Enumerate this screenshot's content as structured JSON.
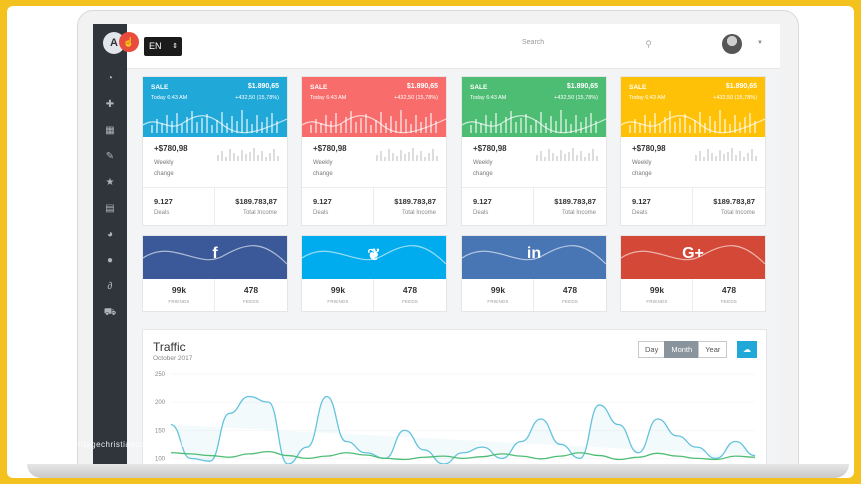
{
  "header": {
    "language": "EN",
    "search_placeholder": "Search"
  },
  "stat_cards": [
    {
      "title": "SALE",
      "amount": "$1.890,65",
      "time": "Today 6:43 AM",
      "delta": "+432,50 (15,78%)",
      "weekly_value": "+$780,98",
      "weekly_label": "Weekly change",
      "deals": "9.127",
      "deals_label": "Deals",
      "income": "$189.783,87",
      "income_label": "Total Income",
      "color": "#20a8d8"
    },
    {
      "title": "SALE",
      "amount": "$1.890,65",
      "time": "Today 6:43 AM",
      "delta": "+432,50 (15,78%)",
      "weekly_value": "+$780,98",
      "weekly_label": "Weekly change",
      "deals": "9.127",
      "deals_label": "Deals",
      "income": "$189.783,87",
      "income_label": "Total Income",
      "color": "#f86c6b"
    },
    {
      "title": "SALE",
      "amount": "$1.890,65",
      "time": "Today 6:43 AM",
      "delta": "+432,50 (15,78%)",
      "weekly_value": "+$780,98",
      "weekly_label": "Weekly change",
      "deals": "9.127",
      "deals_label": "Deals",
      "income": "$189.783,87",
      "income_label": "Total Income",
      "color": "#4dbd74"
    },
    {
      "title": "SALE",
      "amount": "$1.890,65",
      "time": "Today 6:43 AM",
      "delta": "+432,50 (15,78%)",
      "weekly_value": "+$780,98",
      "weekly_label": "Weekly change",
      "deals": "9.127",
      "deals_label": "Deals",
      "income": "$189.783,87",
      "income_label": "Total Income",
      "color": "#ffc107"
    }
  ],
  "social_cards": [
    {
      "icon": "f",
      "network": "facebook",
      "friends": "99k",
      "friends_label": "FRIENDS",
      "feeds": "478",
      "feeds_label": "FEEDS",
      "color": "#3b5998"
    },
    {
      "icon": "❦",
      "network": "twitter",
      "friends": "99k",
      "friends_label": "FRIENDS",
      "feeds": "478",
      "feeds_label": "FEEDS",
      "color": "#00aced"
    },
    {
      "icon": "in",
      "network": "linkedin",
      "friends": "99k",
      "friends_label": "FRIENDS",
      "feeds": "478",
      "feeds_label": "FEEDS",
      "color": "#4875b4"
    },
    {
      "icon": "G+",
      "network": "google-plus",
      "friends": "99k",
      "friends_label": "FRIENDS",
      "feeds": "478",
      "feeds_label": "FEEDS",
      "color": "#d34836"
    }
  ],
  "traffic": {
    "title": "Traffic",
    "subtitle": "October 2017",
    "buttons": [
      "Day",
      "Month",
      "Year"
    ],
    "active_button": "Month"
  },
  "chart_data": {
    "type": "line",
    "y_ticks": [
      "250",
      "200",
      "150",
      "100"
    ],
    "ylim": [
      90,
      250
    ],
    "series": [
      {
        "values": [
          160,
          100,
          95,
          180,
          210,
          200,
          90,
          120,
          210,
          130,
          110,
          100,
          150,
          115,
          90,
          110,
          120,
          100,
          130,
          170,
          125,
          100,
          195,
          160,
          110,
          170,
          140,
          120,
          100,
          130,
          105
        ],
        "color": "#63c2de"
      },
      {
        "values": [
          110,
          108,
          105,
          102,
          108,
          112,
          105,
          100,
          104,
          110,
          106,
          100,
          98,
          102,
          104,
          100,
          103,
          108,
          104,
          99,
          104,
          110,
          105,
          98,
          102,
          109,
          104,
          100,
          98,
          104,
          102
        ],
        "color": "#4dbd74"
      }
    ]
  },
  "watermark": "www.heritagechristiancollege.com",
  "sidebar_icons": [
    "dashboard-icon",
    "puzzle-icon",
    "table-icon",
    "edit-icon",
    "star-icon",
    "calculator-icon",
    "pie-chart-icon",
    "location-pin-icon",
    "paperclip-icon",
    "cart-icon"
  ]
}
